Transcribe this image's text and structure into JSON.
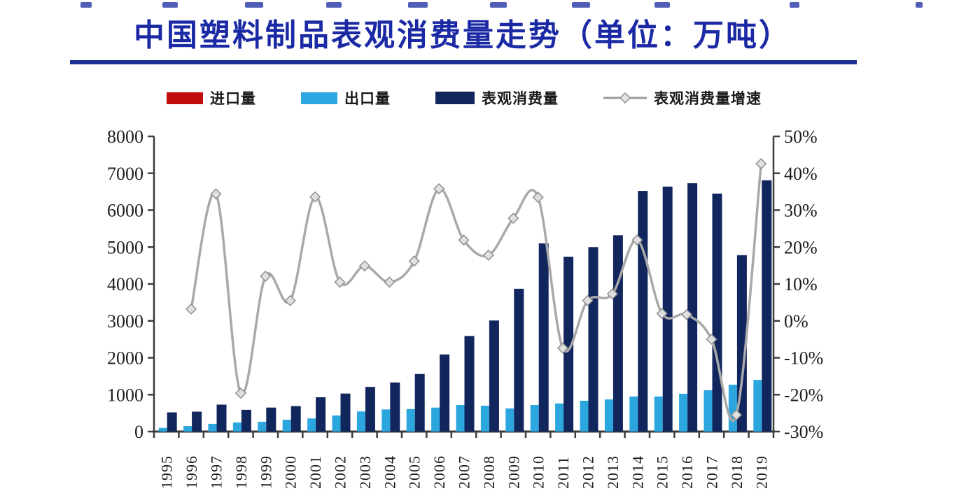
{
  "page": {
    "title": "中国塑料制品表观消费量走势（单位：万吨）"
  },
  "legend": {
    "items": [
      {
        "label": "进口量",
        "swatch": "bar",
        "color": "#c00d0d"
      },
      {
        "label": "出口量",
        "swatch": "bar",
        "color": "#2ba6df"
      },
      {
        "label": "表观消费量",
        "swatch": "bar",
        "color": "#12265e"
      },
      {
        "label": "表观消费量增速",
        "swatch": "line-marker",
        "color": "#a9a9a9"
      }
    ]
  },
  "chart_data": {
    "type": "bar",
    "subtype": "combo-bar-line-dual-axis",
    "title": "中国塑料制品表观消费量走势",
    "unit": "万吨",
    "grid": false,
    "legend_position": "top",
    "categories": [
      "1995",
      "1996",
      "1997",
      "1998",
      "1999",
      "2000",
      "2001",
      "2002",
      "2003",
      "2004",
      "2005",
      "2006",
      "2007",
      "2008",
      "2009",
      "2010",
      "2011",
      "2012",
      "2013",
      "2014",
      "2015",
      "2016",
      "2017",
      "2018",
      "2019"
    ],
    "series": [
      {
        "name": "进口量",
        "type": "bar",
        "axis": "left",
        "color": "#c00d0d",
        "values": [
          0,
          0,
          0,
          0,
          0,
          0,
          0,
          0,
          0,
          0,
          0,
          0,
          0,
          0,
          0,
          0,
          0,
          0,
          0,
          0,
          0,
          0,
          0,
          0,
          0
        ]
      },
      {
        "name": "出口量",
        "type": "bar",
        "axis": "left",
        "color": "#2ba6df",
        "values": [
          100,
          150,
          210,
          245,
          265,
          320,
          355,
          435,
          545,
          600,
          610,
          650,
          720,
          700,
          625,
          720,
          760,
          835,
          870,
          950,
          950,
          1025,
          1120,
          1270,
          1400
        ]
      },
      {
        "name": "表观消费量",
        "type": "bar",
        "axis": "left",
        "color": "#12265e",
        "values": [
          520,
          540,
          730,
          590,
          650,
          690,
          930,
          1030,
          1210,
          1330,
          1560,
          2090,
          2590,
          3010,
          3870,
          5100,
          4740,
          5000,
          5320,
          6520,
          6640,
          6730,
          6450,
          4780,
          6810
        ]
      },
      {
        "name": "表观消费量增速",
        "type": "line",
        "axis": "right",
        "color": "#a9a9a9",
        "marker": "diamond",
        "values": [
          null,
          3.2,
          34.4,
          -19.6,
          12.1,
          5.5,
          33.6,
          10.5,
          14.9,
          10.5,
          16.2,
          35.8,
          21.9,
          17.8,
          27.8,
          33.5,
          -7.4,
          5.5,
          7.3,
          21.9,
          2.0,
          1.7,
          -5.0,
          -25.5,
          42.6
        ]
      }
    ],
    "left_axis": {
      "min": 0,
      "max": 8000,
      "step": 1000,
      "labels": [
        "0",
        "1000",
        "2000",
        "3000",
        "4000",
        "5000",
        "6000",
        "7000",
        "8000"
      ]
    },
    "right_axis": {
      "min": -30,
      "max": 50,
      "step": 10,
      "labels": [
        "-30%",
        "-20%",
        "-10%",
        "0%",
        "10%",
        "20%",
        "30%",
        "40%",
        "50%"
      ]
    }
  }
}
